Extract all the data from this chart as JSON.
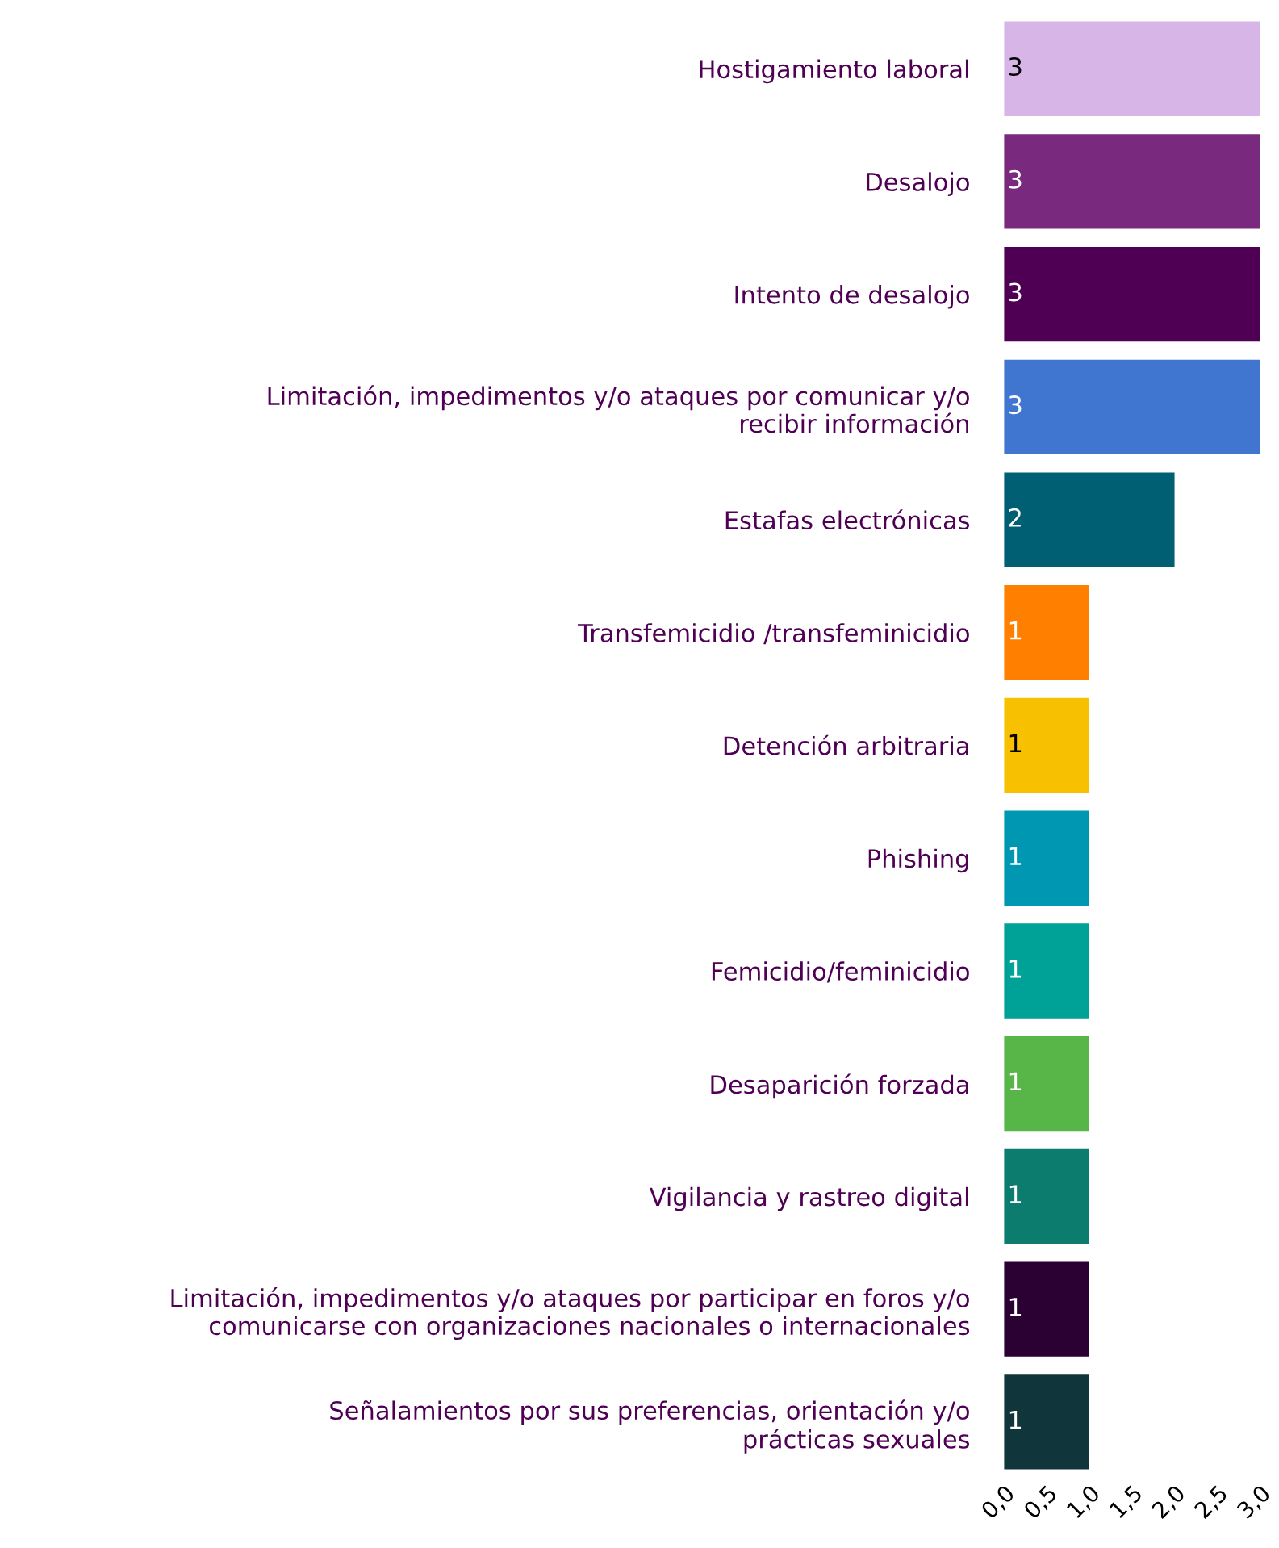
{
  "chart_data": {
    "type": "bar",
    "orientation": "horizontal",
    "categories": [
      "Hostigamiento laboral",
      "Desalojo",
      "Intento de desalojo",
      "Limitación, impedimentos y/o ataques por comunicar y/o\nrecibir información",
      "Estafas electrónicas",
      "Transfemicidio /transfeminicidio",
      "Detención arbitraria",
      "Phishing",
      "Femicidio/feminicidio",
      "Desaparición forzada",
      "Vigilancia y rastreo digital",
      "Limitación, impedimentos y/o ataques por participar en foros y/o\ncomunicarse con organizaciones nacionales o internacionales",
      "Señalamientos por sus preferencias, orientación y/o\nprácticas sexuales"
    ],
    "values": [
      3,
      3,
      3,
      3,
      2,
      1,
      1,
      1,
      1,
      1,
      1,
      1,
      1
    ],
    "colors": [
      "#d7b5e6",
      "#7a2a7e",
      "#4f0055",
      "#4176d0",
      "#005f73",
      "#ff7f00",
      "#f7c000",
      "#0097b2",
      "#00a196",
      "#58b548",
      "#0b7c6e",
      "#2b0033",
      "#10353a"
    ],
    "xlim": [
      0,
      3
    ],
    "xticks": [
      {
        "value": 0,
        "label": "0,0"
      },
      {
        "value": 0.5,
        "label": "0,5"
      },
      {
        "value": 1,
        "label": "1,0"
      },
      {
        "value": 1.5,
        "label": "1,5"
      },
      {
        "value": 2,
        "label": "2,0"
      },
      {
        "value": 2.5,
        "label": "2,5"
      },
      {
        "value": 3,
        "label": "3,0"
      }
    ],
    "data_labels": true,
    "grid": false,
    "legend": false
  }
}
